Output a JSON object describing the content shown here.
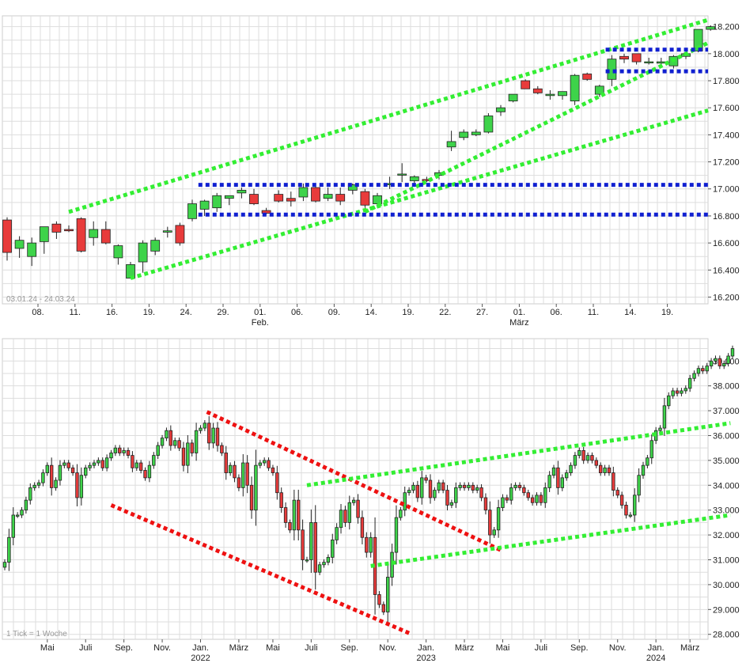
{
  "chart_data": [
    {
      "type": "candlestick",
      "caption": "03.01.24 - 24.03.24",
      "ylim": [
        16150,
        18280
      ],
      "y_ticks": [
        {
          "v": 16200,
          "label": "16.200"
        },
        {
          "v": 16400,
          "label": "16.400"
        },
        {
          "v": 16600,
          "label": "16.600"
        },
        {
          "v": 16800,
          "label": "16.800"
        },
        {
          "v": 17000,
          "label": "17.000"
        },
        {
          "v": 17200,
          "label": "17.200"
        },
        {
          "v": 17400,
          "label": "17.400"
        },
        {
          "v": 17600,
          "label": "17.600"
        },
        {
          "v": 17800,
          "label": "17.800"
        },
        {
          "v": 18000,
          "label": "18.000"
        },
        {
          "v": 18200,
          "label": "18.200"
        }
      ],
      "x_ticks": [
        {
          "i": 2.5,
          "label": "08."
        },
        {
          "i": 5.5,
          "label": "11."
        },
        {
          "i": 8.5,
          "label": "16."
        },
        {
          "i": 11.5,
          "label": "19."
        },
        {
          "i": 14.5,
          "label": "24."
        },
        {
          "i": 17.5,
          "label": "29."
        },
        {
          "i": 20.5,
          "label": "01.",
          "sub": "Feb."
        },
        {
          "i": 23.5,
          "label": "06."
        },
        {
          "i": 26.5,
          "label": "09."
        },
        {
          "i": 29.5,
          "label": "14."
        },
        {
          "i": 32.5,
          "label": "19."
        },
        {
          "i": 35.5,
          "label": "22."
        },
        {
          "i": 38.5,
          "label": "27."
        },
        {
          "i": 41.5,
          "label": "01.",
          "sub": "März"
        },
        {
          "i": 44.5,
          "label": "06."
        },
        {
          "i": 47.5,
          "label": "11."
        },
        {
          "i": 50.5,
          "label": "14."
        },
        {
          "i": 53.5,
          "label": "19."
        }
      ],
      "candles": [
        {
          "o": 16770,
          "h": 16790,
          "l": 16470,
          "c": 16530
        },
        {
          "o": 16560,
          "h": 16650,
          "l": 16490,
          "c": 16620
        },
        {
          "o": 16500,
          "h": 16640,
          "l": 16430,
          "c": 16600
        },
        {
          "o": 16610,
          "h": 16720,
          "l": 16520,
          "c": 16720
        },
        {
          "o": 16740,
          "h": 16760,
          "l": 16630,
          "c": 16680
        },
        {
          "o": 16700,
          "h": 16730,
          "l": 16680,
          "c": 16690
        },
        {
          "o": 16780,
          "h": 16790,
          "l": 16530,
          "c": 16540
        },
        {
          "o": 16640,
          "h": 16760,
          "l": 16580,
          "c": 16700
        },
        {
          "o": 16700,
          "h": 16760,
          "l": 16590,
          "c": 16600
        },
        {
          "o": 16490,
          "h": 16590,
          "l": 16440,
          "c": 16580
        },
        {
          "o": 16340,
          "h": 16460,
          "l": 16340,
          "c": 16440
        },
        {
          "o": 16460,
          "h": 16620,
          "l": 16380,
          "c": 16600
        },
        {
          "o": 16540,
          "h": 16640,
          "l": 16510,
          "c": 16620
        },
        {
          "o": 16680,
          "h": 16720,
          "l": 16640,
          "c": 16690
        },
        {
          "o": 16730,
          "h": 16750,
          "l": 16580,
          "c": 16600
        },
        {
          "o": 16780,
          "h": 16920,
          "l": 16760,
          "c": 16890
        },
        {
          "o": 16850,
          "h": 16920,
          "l": 16800,
          "c": 16910
        },
        {
          "o": 16860,
          "h": 16970,
          "l": 16830,
          "c": 16950
        },
        {
          "o": 16930,
          "h": 16950,
          "l": 16880,
          "c": 16950
        },
        {
          "o": 16970,
          "h": 17010,
          "l": 16930,
          "c": 16990
        },
        {
          "o": 16960,
          "h": 17000,
          "l": 16880,
          "c": 16890
        },
        {
          "o": 16840,
          "h": 16860,
          "l": 16810,
          "c": 16820
        },
        {
          "o": 16960,
          "h": 16990,
          "l": 16900,
          "c": 16910
        },
        {
          "o": 16930,
          "h": 16980,
          "l": 16870,
          "c": 16910
        },
        {
          "o": 16940,
          "h": 17040,
          "l": 16910,
          "c": 17010
        },
        {
          "o": 17010,
          "h": 17030,
          "l": 16900,
          "c": 16910
        },
        {
          "o": 16930,
          "h": 17010,
          "l": 16910,
          "c": 16960
        },
        {
          "o": 16960,
          "h": 17010,
          "l": 16880,
          "c": 16910
        },
        {
          "o": 16990,
          "h": 17040,
          "l": 16960,
          "c": 17030
        },
        {
          "o": 16980,
          "h": 17000,
          "l": 16860,
          "c": 16880
        },
        {
          "o": 16890,
          "h": 16970,
          "l": 16880,
          "c": 16950
        },
        {
          "o": 17030,
          "h": 17090,
          "l": 17000,
          "c": 17040
        },
        {
          "o": 17110,
          "h": 17190,
          "l": 17050,
          "c": 17110
        },
        {
          "o": 17060,
          "h": 17100,
          "l": 17040,
          "c": 17090
        },
        {
          "o": 17070,
          "h": 17090,
          "l": 17050,
          "c": 17060
        },
        {
          "o": 17100,
          "h": 17140,
          "l": 17070,
          "c": 17120
        },
        {
          "o": 17310,
          "h": 17430,
          "l": 17280,
          "c": 17350
        },
        {
          "o": 17380,
          "h": 17440,
          "l": 17360,
          "c": 17420
        },
        {
          "o": 17400,
          "h": 17440,
          "l": 17390,
          "c": 17420
        },
        {
          "o": 17420,
          "h": 17560,
          "l": 17410,
          "c": 17540
        },
        {
          "o": 17570,
          "h": 17620,
          "l": 17540,
          "c": 17600
        },
        {
          "o": 17650,
          "h": 17700,
          "l": 17640,
          "c": 17700
        },
        {
          "o": 17800,
          "h": 17810,
          "l": 17740,
          "c": 17740
        },
        {
          "o": 17740,
          "h": 17760,
          "l": 17700,
          "c": 17710
        },
        {
          "o": 17690,
          "h": 17730,
          "l": 17660,
          "c": 17700
        },
        {
          "o": 17690,
          "h": 17720,
          "l": 17660,
          "c": 17720
        },
        {
          "o": 17650,
          "h": 17850,
          "l": 17620,
          "c": 17840
        },
        {
          "o": 17850,
          "h": 17860,
          "l": 17800,
          "c": 17810
        },
        {
          "o": 17700,
          "h": 17770,
          "l": 17680,
          "c": 17760
        },
        {
          "o": 17810,
          "h": 17990,
          "l": 17760,
          "c": 17960
        },
        {
          "o": 17980,
          "h": 18000,
          "l": 17930,
          "c": 17960
        },
        {
          "o": 18000,
          "h": 18000,
          "l": 17920,
          "c": 17940
        },
        {
          "o": 17940,
          "h": 17970,
          "l": 17920,
          "c": 17940
        },
        {
          "o": 17930,
          "h": 17970,
          "l": 17910,
          "c": 17940
        },
        {
          "o": 17910,
          "h": 17990,
          "l": 17890,
          "c": 17980
        },
        {
          "o": 17980,
          "h": 18010,
          "l": 17960,
          "c": 18000
        },
        {
          "o": 18020,
          "h": 18180,
          "l": 18010,
          "c": 18180
        },
        {
          "o": 18180,
          "h": 18210,
          "l": 18170,
          "c": 18200
        }
      ],
      "overlays": [
        {
          "kind": "line",
          "color": "#33ee33",
          "from": {
            "i": 5,
            "v": 16830
          },
          "to": {
            "i": 56.8,
            "v": 18250
          }
        },
        {
          "kind": "line",
          "color": "#33ee33",
          "from": {
            "i": 10,
            "v": 16340
          },
          "to": {
            "i": 56.8,
            "v": 17580
          }
        },
        {
          "kind": "line",
          "color": "#33ee33",
          "from": {
            "i": 29,
            "v": 16830
          },
          "to": {
            "i": 56.8,
            "v": 18080
          }
        },
        {
          "kind": "line",
          "color": "#1020d0",
          "from": {
            "i": 15.5,
            "v": 17030
          },
          "to": {
            "i": 56.8,
            "v": 17030
          }
        },
        {
          "kind": "line",
          "color": "#1020d0",
          "from": {
            "i": 15.5,
            "v": 16810
          },
          "to": {
            "i": 56.8,
            "v": 16810
          }
        },
        {
          "kind": "line",
          "color": "#1020d0",
          "from": {
            "i": 48.5,
            "v": 18030
          },
          "to": {
            "i": 56.8,
            "v": 18030
          }
        },
        {
          "kind": "line",
          "color": "#1020d0",
          "from": {
            "i": 48.5,
            "v": 17870
          },
          "to": {
            "i": 56.8,
            "v": 17870
          }
        }
      ],
      "colors": {
        "up": "#3ed34a",
        "down": "#e83b3b",
        "wick": "#222222",
        "grid": "#dddddd"
      }
    },
    {
      "type": "candlestick",
      "caption": "1 Tick = 1 Woche",
      "ylim": [
        27800,
        39900
      ],
      "y_ticks": [
        {
          "v": 28000,
          "label": "28.000"
        },
        {
          "v": 29000,
          "label": "29.000"
        },
        {
          "v": 30000,
          "label": "30.000"
        },
        {
          "v": 31000,
          "label": "31.000"
        },
        {
          "v": 32000,
          "label": "32.000"
        },
        {
          "v": 33000,
          "label": "33.000"
        },
        {
          "v": 34000,
          "label": "34.000"
        },
        {
          "v": 35000,
          "label": "35.000"
        },
        {
          "v": 36000,
          "label": "36.000"
        },
        {
          "v": 37000,
          "label": "37.000"
        },
        {
          "v": 38000,
          "label": "38.000"
        },
        {
          "v": 39000,
          "label": "39.000"
        }
      ],
      "x_ticks": [
        {
          "i": 10,
          "label": "Mai"
        },
        {
          "i": 19,
          "label": "Juli"
        },
        {
          "i": 28,
          "label": "Sep."
        },
        {
          "i": 37,
          "label": "Nov."
        },
        {
          "i": 46,
          "label": "Jan.",
          "sub": "2022"
        },
        {
          "i": 55,
          "label": "März"
        },
        {
          "i": 63,
          "label": "Mai"
        },
        {
          "i": 72,
          "label": "Juli"
        },
        {
          "i": 81,
          "label": "Sep."
        },
        {
          "i": 90,
          "label": "Nov."
        },
        {
          "i": 99,
          "label": "Jan.",
          "sub": "2023"
        },
        {
          "i": 108,
          "label": "März"
        },
        {
          "i": 117,
          "label": "Mai"
        },
        {
          "i": 126,
          "label": "Juli"
        },
        {
          "i": 135,
          "label": "Sep."
        },
        {
          "i": 144,
          "label": "Nov."
        },
        {
          "i": 153,
          "label": "Jan.",
          "sub": "2024"
        },
        {
          "i": 161,
          "label": "März"
        }
      ],
      "series": [
        {
          "name": "close",
          "values": [
            30900,
            31900,
            32800,
            32800,
            33000,
            33400,
            33900,
            34000,
            34100,
            34500,
            34800,
            33900,
            34200,
            34800,
            34900,
            34700,
            34500,
            33500,
            34400,
            34700,
            34800,
            34900,
            35000,
            34700,
            35100,
            35300,
            35500,
            35300,
            35400,
            35200,
            34700,
            34900,
            34600,
            34300,
            34800,
            35200,
            35600,
            35900,
            36200,
            35600,
            35800,
            35500,
            34800,
            35700,
            35300,
            36200,
            36300,
            36500,
            35700,
            36300,
            35600,
            35300,
            34500,
            34800,
            34300,
            33900,
            34900,
            34000,
            33000,
            34800,
            34900,
            35000,
            34700,
            34500,
            33700,
            33100,
            32500,
            32200,
            33400,
            32200,
            31000,
            31000,
            32500,
            30500,
            30800,
            30900,
            31100,
            31800,
            32300,
            33000,
            32500,
            33300,
            33400,
            32700,
            31900,
            31300,
            31900,
            29600,
            29200,
            28900,
            30300,
            31300,
            32700,
            33000,
            33700,
            33800,
            34000,
            33500,
            34300,
            34200,
            33500,
            33800,
            34100,
            33800,
            33200,
            33300,
            33900,
            34000,
            33900,
            34000,
            33800,
            33900,
            33500,
            33000,
            32000,
            32200,
            33100,
            33500,
            33400,
            33900,
            34000,
            33900,
            33700,
            33500,
            33300,
            33600,
            33300,
            33900,
            34400,
            34700,
            33900,
            34300,
            34500,
            34800,
            35200,
            35400,
            35000,
            35200,
            35000,
            34800,
            34500,
            34700,
            34500,
            33800,
            33600,
            33200,
            32800,
            32800,
            33600,
            34400,
            34800,
            35100,
            35800,
            36200,
            36300,
            37200,
            37600,
            37800,
            37700,
            37800,
            37900,
            38300,
            38500,
            38700,
            38600,
            38800,
            39000,
            39100,
            38800,
            38900,
            39200,
            39500
          ]
        }
      ],
      "overlays": [
        {
          "kind": "line",
          "color": "#ee1111",
          "from": {
            "i": 47.5,
            "v": 36950
          },
          "to": {
            "i": 117,
            "v": 31350
          }
        },
        {
          "kind": "line",
          "color": "#ee1111",
          "from": {
            "i": 25,
            "v": 33200
          },
          "to": {
            "i": 95,
            "v": 28050
          }
        },
        {
          "kind": "line",
          "color": "#33ee33",
          "from": {
            "i": 71,
            "v": 34000
          },
          "to": {
            "i": 170.5,
            "v": 36500
          }
        },
        {
          "kind": "line",
          "color": "#33ee33",
          "from": {
            "i": 86,
            "v": 30750
          },
          "to": {
            "i": 170.5,
            "v": 32800
          }
        }
      ],
      "colors": {
        "up": "#3ed34a",
        "down": "#e83b3b",
        "wick": "#222222",
        "grid": "#dddddd"
      }
    }
  ]
}
